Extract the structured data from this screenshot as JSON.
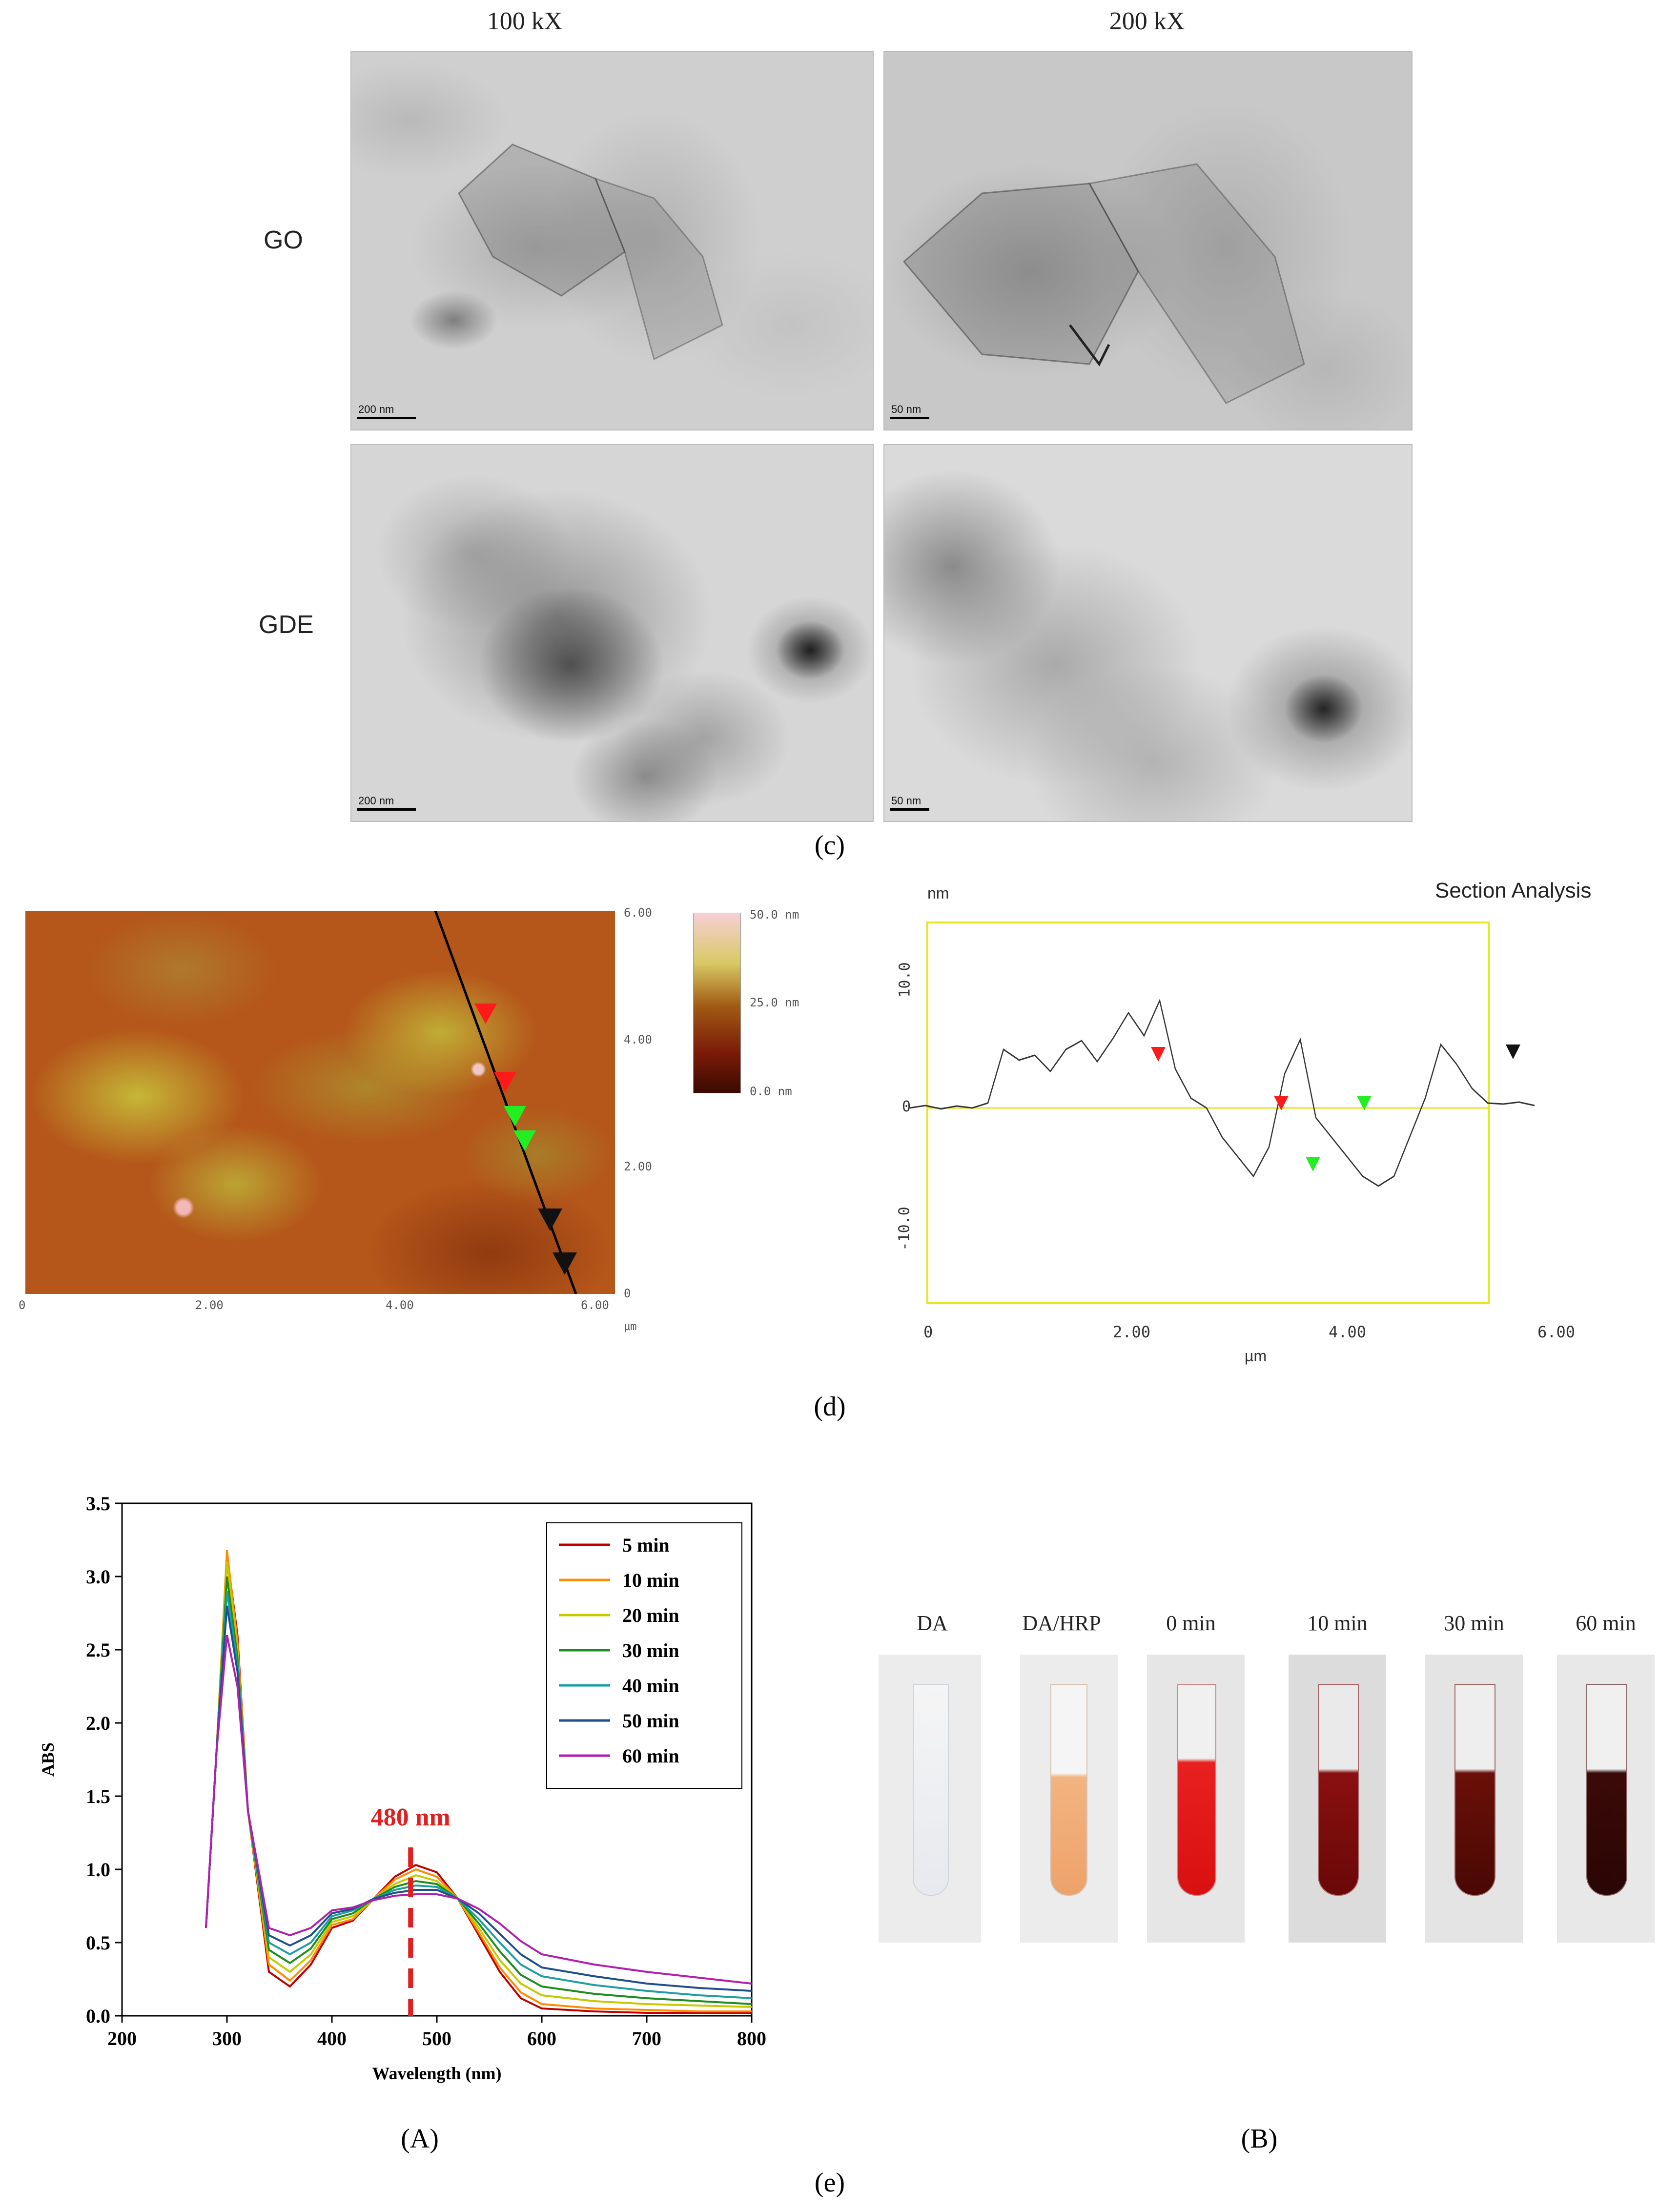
{
  "panel_c": {
    "col_headers": [
      "100 kX",
      "200 kX"
    ],
    "row_labels": [
      "GO",
      "GDE"
    ],
    "scale_labels": [
      "200 nm",
      "50 nm",
      "200 nm",
      "50 nm"
    ],
    "label": "(c)"
  },
  "panel_d": {
    "afm": {
      "right_ticks": [
        "6.00",
        "4.00",
        "2.00",
        "0"
      ],
      "bottom_ticks": [
        "0",
        "2.00",
        "4.00",
        "6.00"
      ],
      "unit": "µm",
      "colorbar": [
        "50.0 nm",
        "25.0 nm",
        "0.0 nm"
      ]
    },
    "section": {
      "title": "Section Analysis",
      "y_unit": "nm",
      "y_ticks": [
        "10.0",
        "0",
        "-10.0"
      ],
      "x_ticks": [
        "0",
        "2.00",
        "4.00",
        "6.00"
      ],
      "x_unit": "µm"
    },
    "label": "(d)"
  },
  "panel_e": {
    "label": "(e)",
    "sub_A": "(A)",
    "sub_B": "(B)",
    "tube_labels": [
      "DA",
      "DA/HRP",
      "0 min",
      "10 min",
      "30 min",
      "60 min"
    ]
  },
  "chart_data": {
    "type": "line",
    "xlabel": "Wavelength (nm)",
    "ylabel": "ABS",
    "xlim": [
      200,
      800
    ],
    "ylim": [
      0,
      3.5
    ],
    "x_ticks": [
      200,
      300,
      400,
      500,
      600,
      700,
      800
    ],
    "y_ticks": [
      0.0,
      0.5,
      1.0,
      1.5,
      2.0,
      2.5,
      3.0,
      3.5
    ],
    "annotation": "480 nm",
    "annotation_x": 475,
    "legend_position": "top-right",
    "x": [
      280,
      290,
      300,
      310,
      320,
      340,
      360,
      380,
      400,
      420,
      440,
      460,
      480,
      500,
      520,
      540,
      560,
      580,
      600,
      650,
      700,
      750,
      800
    ],
    "series": [
      {
        "name": "5 min",
        "color": "#c00000",
        "values": [
          0.6,
          1.8,
          3.15,
          2.6,
          1.4,
          0.3,
          0.2,
          0.35,
          0.6,
          0.65,
          0.8,
          0.95,
          1.03,
          0.98,
          0.8,
          0.55,
          0.3,
          0.12,
          0.05,
          0.03,
          0.02,
          0.02,
          0.02
        ]
      },
      {
        "name": "10 min",
        "color": "#ff8c00",
        "values": [
          0.6,
          1.8,
          3.18,
          2.55,
          1.4,
          0.35,
          0.24,
          0.38,
          0.62,
          0.66,
          0.8,
          0.93,
          1.0,
          0.95,
          0.8,
          0.57,
          0.33,
          0.16,
          0.08,
          0.05,
          0.04,
          0.03,
          0.03
        ]
      },
      {
        "name": "20 min",
        "color": "#c8c800",
        "values": [
          0.6,
          1.8,
          3.1,
          2.5,
          1.4,
          0.4,
          0.3,
          0.42,
          0.64,
          0.68,
          0.8,
          0.9,
          0.96,
          0.92,
          0.8,
          0.6,
          0.38,
          0.22,
          0.14,
          0.1,
          0.08,
          0.07,
          0.06
        ]
      },
      {
        "name": "30 min",
        "color": "#1e8c1e",
        "values": [
          0.6,
          1.8,
          3.0,
          2.45,
          1.4,
          0.45,
          0.36,
          0.46,
          0.66,
          0.7,
          0.8,
          0.88,
          0.92,
          0.9,
          0.8,
          0.63,
          0.44,
          0.28,
          0.2,
          0.15,
          0.12,
          0.1,
          0.08
        ]
      },
      {
        "name": "40 min",
        "color": "#1e9ea0",
        "values": [
          0.6,
          1.8,
          2.9,
          2.4,
          1.4,
          0.5,
          0.42,
          0.5,
          0.68,
          0.72,
          0.8,
          0.86,
          0.89,
          0.88,
          0.8,
          0.66,
          0.5,
          0.35,
          0.27,
          0.21,
          0.17,
          0.14,
          0.12
        ]
      },
      {
        "name": "50 min",
        "color": "#1f4f8c",
        "values": [
          0.6,
          1.8,
          2.8,
          2.35,
          1.4,
          0.55,
          0.48,
          0.55,
          0.7,
          0.73,
          0.8,
          0.84,
          0.86,
          0.86,
          0.8,
          0.7,
          0.56,
          0.42,
          0.33,
          0.27,
          0.22,
          0.19,
          0.17
        ]
      },
      {
        "name": "60 min",
        "color": "#b020b0",
        "values": [
          0.6,
          1.8,
          2.6,
          2.25,
          1.4,
          0.6,
          0.55,
          0.6,
          0.72,
          0.74,
          0.79,
          0.82,
          0.83,
          0.83,
          0.8,
          0.73,
          0.63,
          0.51,
          0.42,
          0.35,
          0.3,
          0.26,
          0.22
        ]
      }
    ]
  }
}
